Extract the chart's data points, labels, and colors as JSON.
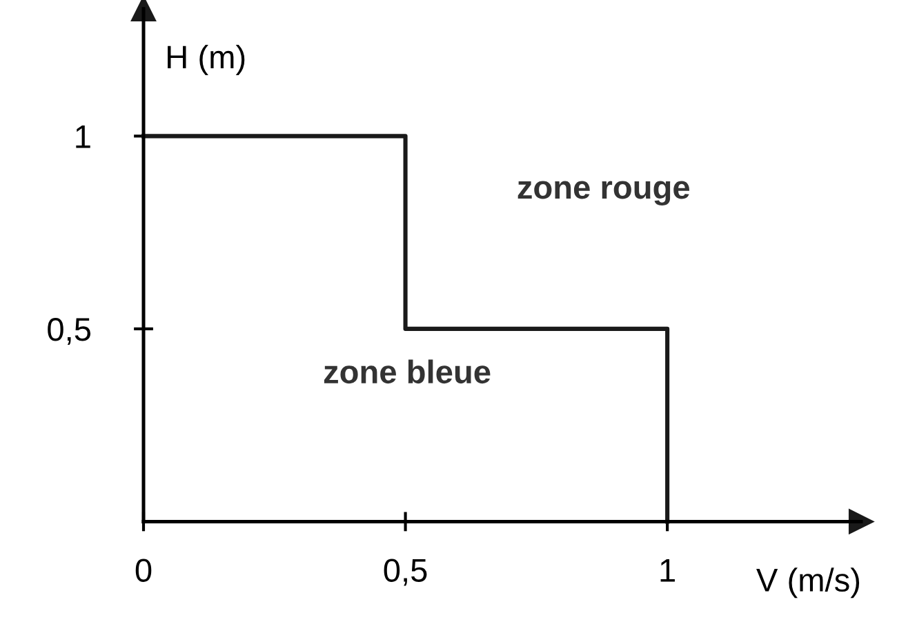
{
  "chart_data": {
    "type": "line",
    "xlabel": "V (m/s)",
    "ylabel": "H (m)",
    "x": [
      0,
      0.5,
      0.5,
      1,
      1
    ],
    "series": [
      {
        "color": "#1a1a1a",
        "values": [
          1,
          1,
          0.5,
          0.5,
          0
        ]
      }
    ],
    "xlim": [
      0,
      1.37
    ],
    "ylim": [
      0,
      1.33
    ],
    "xticks": [
      0,
      {
        "value": 0.5,
        "label": "0,5"
      },
      1
    ],
    "yticks": [
      {
        "value": 0.5,
        "label": "0,5"
      },
      1
    ],
    "annotations": [
      "zone rouge",
      "zone bleue"
    ],
    "grid": false,
    "legend": false,
    "marker": "none",
    "line_style": "solid"
  }
}
